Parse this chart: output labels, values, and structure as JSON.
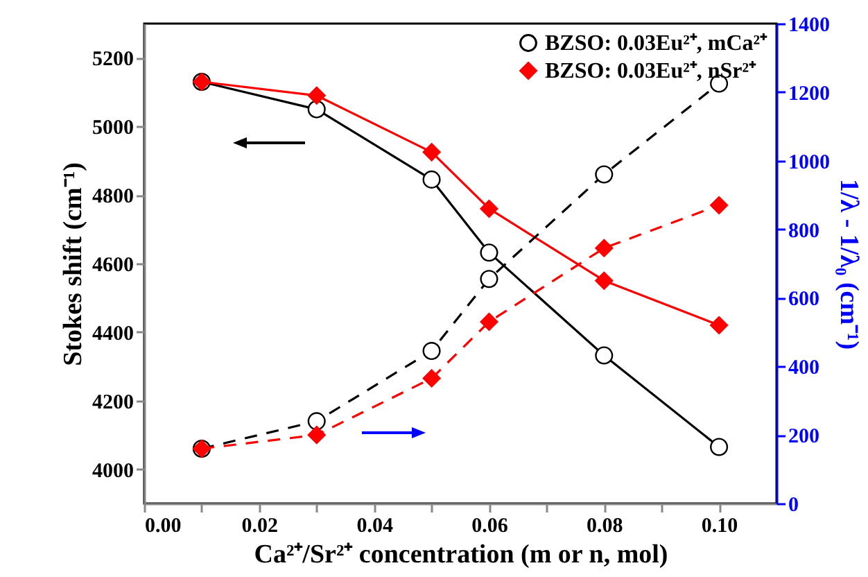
{
  "chart_data": {
    "type": "line",
    "xlabel": "Ca²⁺/Sr²⁺ concentration (m or n, mol)",
    "ylabel": "Stokes shift (cm⁻¹)",
    "y2label": "1/λ - 1/λ₀ (cm⁻¹)",
    "x": [
      0.01,
      0.03,
      0.05,
      0.06,
      0.08,
      0.1
    ],
    "xlim": [
      0,
      0.11
    ],
    "xticks": [
      {
        "value": 0,
        "label": "0.00"
      },
      {
        "value": 0.01,
        "label": null
      },
      0.02,
      {
        "value": 0.03,
        "label": null
      },
      {
        "value": 0.04,
        "label": "0.04"
      },
      {
        "value": 0.05,
        "label": null
      },
      {
        "value": 0.06,
        "label": "0.06"
      },
      {
        "value": 0.07,
        "label": null
      },
      {
        "value": 0.08,
        "label": "0.08"
      },
      {
        "value": 0.09,
        "label": null
      },
      {
        "value": 0.1,
        "label": "0.10"
      }
    ],
    "ylim": [
      3900,
      5300
    ],
    "yticks": [
      4000,
      {
        "value": 4100,
        "label": null
      },
      4200,
      {
        "value": 4300,
        "label": null
      },
      4400,
      {
        "value": 4500,
        "label": null
      },
      4600,
      {
        "value": 4700,
        "label": null
      },
      4800,
      {
        "value": 4900,
        "label": null
      },
      5000,
      {
        "value": 5100,
        "label": null
      },
      5200
    ],
    "y2lim": [
      0,
      1400
    ],
    "y2ticks": [
      0,
      {
        "value": 100,
        "label": null
      },
      200,
      {
        "value": 300,
        "label": null
      },
      400,
      {
        "value": 500,
        "label": null
      },
      600,
      {
        "value": 700,
        "label": null
      },
      800,
      {
        "value": 900,
        "label": null
      },
      1000,
      {
        "value": 1100,
        "label": null
      },
      1200,
      {
        "value": 1300,
        "label": null
      },
      1400
    ],
    "series": [
      {
        "name": "BZSO: 0.03Eu²⁺, mCa²⁺",
        "color": "#000000",
        "marker": "circle",
        "line_style": "solid",
        "values": [
          5130,
          5050,
          4845,
          4632,
          4332,
          4065
        ]
      },
      {
        "name": "BZSO: 0.03Eu²⁺, nSr²⁺",
        "color": "#ff0000",
        "marker": "diamond",
        "line_style": "solid",
        "values": [
          5130,
          5090,
          4925,
          4760,
          4550,
          4420
        ]
      },
      {
        "color": "#000000",
        "marker": "circle",
        "line_style": "dashed",
        "axis": "y2",
        "values": [
          160,
          240,
          445,
          655,
          960,
          1225
        ]
      },
      {
        "color": "#ff0000",
        "marker": "diamond",
        "line_style": "dashed",
        "axis": "y2",
        "values": [
          160,
          200,
          365,
          530,
          745,
          870
        ]
      }
    ],
    "legend": "top right",
    "grid": false
  }
}
